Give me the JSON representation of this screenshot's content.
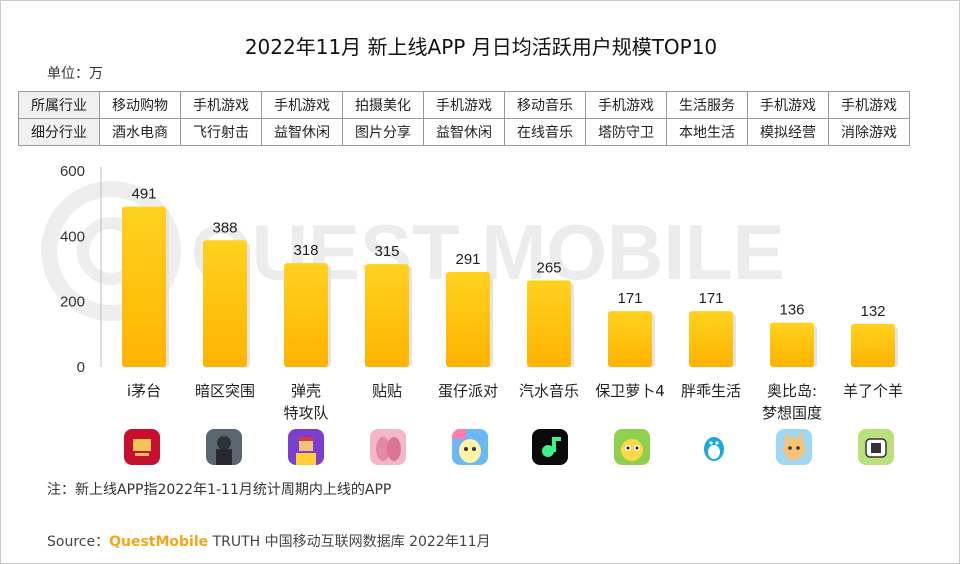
{
  "title": "2022年11月 新上线APP 月日均活跃用户规模TOP10",
  "unit_label": "单位：万",
  "table": {
    "row1_header": "所属行业",
    "row2_header": "细分行业",
    "row1": [
      "移动购物",
      "手机游戏",
      "手机游戏",
      "拍摄美化",
      "手机游戏",
      "移动音乐",
      "手机游戏",
      "生活服务",
      "手机游戏",
      "手机游戏"
    ],
    "row2": [
      "酒水电商",
      "飞行射击",
      "益智休闲",
      "图片分享",
      "益智休闲",
      "在线音乐",
      "塔防守卫",
      "本地生活",
      "模拟经营",
      "消除游戏"
    ]
  },
  "chart_data": {
    "type": "bar",
    "title": "2022年11月 新上线APP 月日均活跃用户规模TOP10",
    "ylabel": "单位：万",
    "ylim": [
      0,
      600
    ],
    "yticks": [
      "0",
      "200",
      "400",
      "600"
    ],
    "categories": [
      [
        "i茅台"
      ],
      [
        "暗区突围"
      ],
      [
        "弹壳",
        "特攻队"
      ],
      [
        "贴贴"
      ],
      [
        "蛋仔派对"
      ],
      [
        "汽水音乐"
      ],
      [
        "保卫萝卜4"
      ],
      [
        "胖乖生活"
      ],
      [
        "奥比岛:",
        "梦想国度"
      ],
      [
        "羊了个羊"
      ]
    ],
    "values": [
      491,
      388,
      318,
      315,
      291,
      265,
      171,
      171,
      136,
      132
    ],
    "bar_color_top": "#ffd21f",
    "bar_color_bottom": "#ffb300"
  },
  "app_icons": [
    "moutai-icon",
    "arena-breakout-icon",
    "survivor-icon",
    "tietie-icon",
    "eggy-party-icon",
    "soda-music-icon",
    "carrot-fantasy-icon",
    "pangguai-icon",
    "aobi-island-icon",
    "sheep-icon"
  ],
  "note": "注：新上线APP指2022年1-11月统计周期内上线的APP",
  "source": {
    "prefix": "Source：",
    "brand": "QuestMobile",
    "suffix": " TRUTH 中国移动互联网数据库 2022年11月"
  },
  "watermark": "QUEST MOBILE"
}
